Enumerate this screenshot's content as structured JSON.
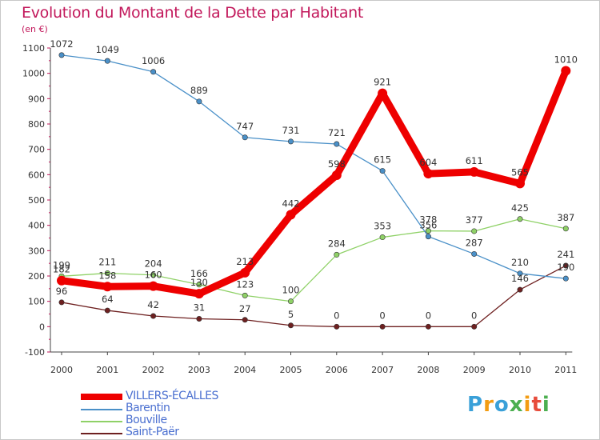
{
  "title": "Evolution du Montant de la Dette par Habitant",
  "subtitle": "(en €)",
  "chart_data": {
    "type": "line",
    "title": "Evolution du Montant de la Dette par Habitant",
    "subtitle": "(en €)",
    "x": [
      "2000",
      "2001",
      "2002",
      "2003",
      "2004",
      "2005",
      "2006",
      "2007",
      "2008",
      "2009",
      "2010",
      "2011"
    ],
    "ylim": [
      -100,
      1100
    ],
    "yticks": [
      -100,
      0,
      100,
      200,
      300,
      400,
      500,
      600,
      700,
      800,
      900,
      1000,
      1100
    ],
    "grid": false,
    "legend_position": "bottom-left",
    "series": [
      {
        "name": "VILLERS-ÉCALLES",
        "color": "#ee0000",
        "values": [
          182,
          158,
          160,
          130,
          213,
          442,
          598,
          921,
          604,
          611,
          565,
          1010
        ]
      },
      {
        "name": "Barentin",
        "color": "#4a90c8",
        "values": [
          1072,
          1049,
          1006,
          889,
          747,
          731,
          721,
          615,
          356,
          287,
          210,
          190
        ]
      },
      {
        "name": "Bouville",
        "color": "#8fd167",
        "values": [
          199,
          211,
          204,
          166,
          123,
          100,
          284,
          353,
          378,
          377,
          425,
          387
        ]
      },
      {
        "name": "Saint-Paër",
        "color": "#6e2020",
        "values": [
          96,
          64,
          42,
          31,
          27,
          5,
          0,
          0,
          0,
          0,
          146,
          241
        ]
      }
    ]
  },
  "logo": {
    "letters": [
      "P",
      "r",
      "o",
      "x",
      "i",
      "t",
      "i"
    ],
    "colors": [
      "#3aa0d8",
      "#f39c12",
      "#3aa0d8",
      "#4caf50",
      "#f39c12",
      "#e74c3c",
      "#4caf50"
    ]
  }
}
